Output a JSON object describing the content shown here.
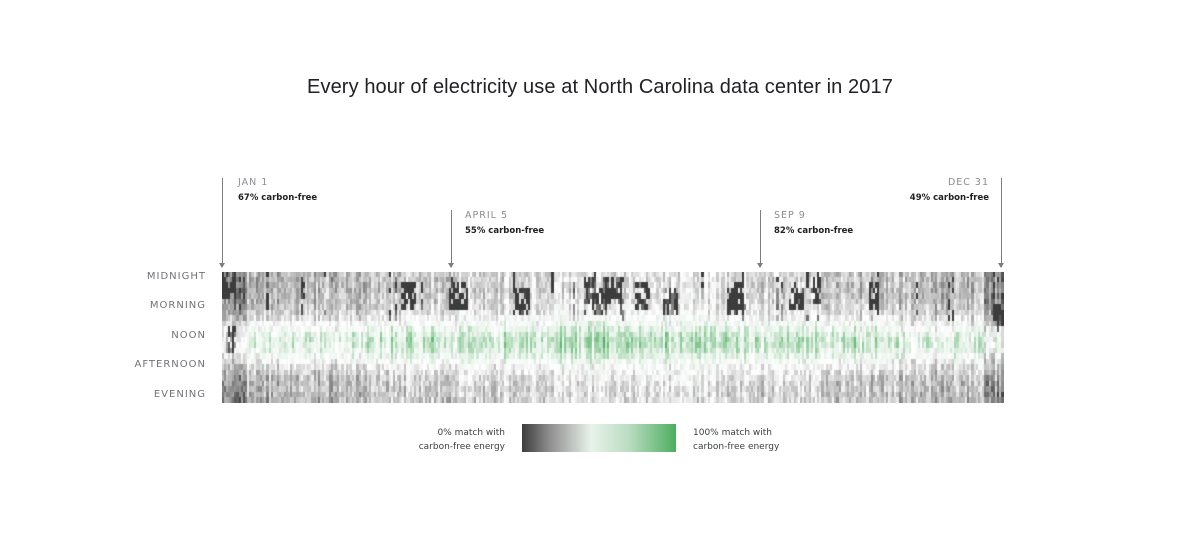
{
  "chart_data": {
    "type": "heatmap",
    "title": "Every hour of electricity use at North Carolina data center in 2017",
    "x_domain": [
      "2017-01-01",
      "2017-12-31"
    ],
    "y_labels": [
      "MIDNIGHT",
      "MORNING",
      "NOON",
      "AFTERNOON",
      "EVENING"
    ],
    "value_unit": "% match with carbon-free energy",
    "value_range": [
      0,
      100
    ],
    "annotations": [
      {
        "date_label": "JAN 1",
        "date": "2017-01-01",
        "text": "67% carbon-free",
        "carbon_free_pct": 67
      },
      {
        "date_label": "APRIL 5",
        "date": "2017-04-05",
        "text": "55% carbon-free",
        "carbon_free_pct": 55
      },
      {
        "date_label": "SEP 9",
        "date": "2017-09-09",
        "text": "82% carbon-free",
        "carbon_free_pct": 82
      },
      {
        "date_label": "DEC 31",
        "date": "2017-12-31",
        "text": "49% carbon-free",
        "carbon_free_pct": 49
      }
    ],
    "legend": {
      "low_label_line1": "0% match with",
      "low_label_line2": "carbon-free energy",
      "high_label_line1": "100% match with",
      "high_label_line2": "carbon-free energy",
      "low_color": "#3c3c3c",
      "mid_color": "#e8f3ea",
      "high_color": "#4cae5f"
    },
    "daily_pattern": "highest carbon-free match around noon, lower at night; dark low-match streaks in early morning hours scattered through spring and summer"
  }
}
